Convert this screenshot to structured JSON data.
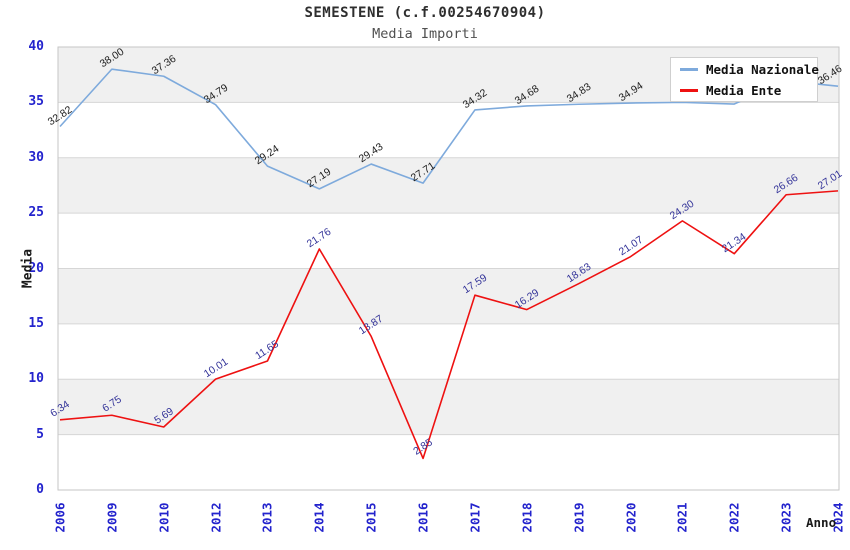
{
  "header": {
    "title": "SEMESTENE (c.f.00254670904)",
    "subtitle": "Media Importi"
  },
  "legend": {
    "items": [
      {
        "label": "Media Nazionale",
        "color": "#7eaadc"
      },
      {
        "label": "Media Ente",
        "color": "#ee1111"
      }
    ]
  },
  "chart_data": {
    "type": "line",
    "title": "SEMESTENE (c.f.00254670904)",
    "subtitle": "Media Importi",
    "xlabel": "Anno",
    "ylabel": "Media",
    "x": [
      "2006",
      "2009",
      "2010",
      "2012",
      "2013",
      "2014",
      "2015",
      "2016",
      "2017",
      "2018",
      "2019",
      "2020",
      "2021",
      "2022",
      "2023",
      "2024"
    ],
    "series": [
      {
        "name": "Media Nazionale",
        "color": "#7eaadc",
        "label_color": "#1c1c1c",
        "values": [
          32.82,
          38.0,
          37.36,
          34.79,
          29.24,
          27.19,
          29.43,
          27.71,
          34.32,
          34.68,
          34.83,
          34.94,
          35.0,
          34.85,
          36.95,
          36.46
        ],
        "labels": [
          "32.82",
          "38.00",
          "37.36",
          "34.79",
          "29.24",
          "27.19",
          "29.43",
          "27.71",
          "34.32",
          "34.68",
          "34.83",
          "34.94",
          "",
          "",
          "",
          "36.46"
        ]
      },
      {
        "name": "Media Ente",
        "color": "#ee1111",
        "label_color": "#333399",
        "values": [
          6.34,
          6.75,
          5.69,
          10.01,
          11.65,
          21.76,
          13.87,
          2.85,
          17.59,
          16.29,
          18.63,
          21.07,
          24.3,
          21.34,
          26.66,
          27.01
        ],
        "labels": [
          "6.34",
          "6.75",
          "5.69",
          "10.01",
          "11.65",
          "21.76",
          "13.87",
          "2.85",
          "17.59",
          "16.29",
          "18.63",
          "21.07",
          "24.30",
          "21.34",
          "26.66",
          "27.01"
        ]
      }
    ],
    "ylim": [
      0,
      40
    ],
    "yticks": [
      0,
      5,
      10,
      15,
      20,
      25,
      30,
      35,
      40
    ],
    "grid": true,
    "band_fill_colors": [
      "#f0f0f0",
      "#ffffff"
    ],
    "gridline_color": "#d6d6d6",
    "plot_border_color": "#c6c6c6",
    "tick_label_color": "#2323cd",
    "legend_position": "top-right"
  }
}
